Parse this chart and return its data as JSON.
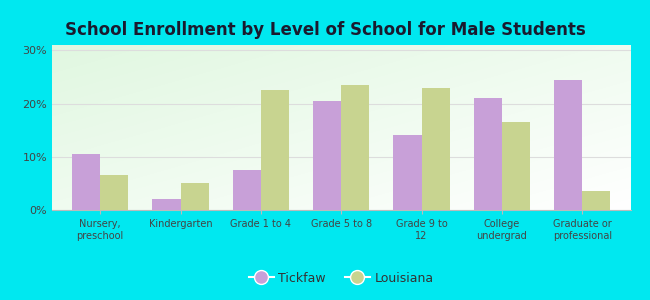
{
  "title": "School Enrollment by Level of School for Male Students",
  "categories": [
    "Nursery,\npreschool",
    "Kindergarten",
    "Grade 1 to 4",
    "Grade 5 to 8",
    "Grade 9 to\n12",
    "College\nundergrad",
    "Graduate or\nprofessional"
  ],
  "tickfaw": [
    10.5,
    2.0,
    7.5,
    20.5,
    14.0,
    21.0,
    24.5
  ],
  "louisiana": [
    6.5,
    5.0,
    22.5,
    23.5,
    23.0,
    16.5,
    3.5
  ],
  "tickfaw_color": "#c8a0d8",
  "louisiana_color": "#c8d490",
  "background_color": "#00e8f0",
  "yticks": [
    0,
    10,
    20,
    30
  ],
  "ylim": [
    0,
    31
  ],
  "bar_width": 0.35,
  "legend_tickfaw": "Tickfaw",
  "legend_louisiana": "Louisiana",
  "title_fontsize": 12
}
